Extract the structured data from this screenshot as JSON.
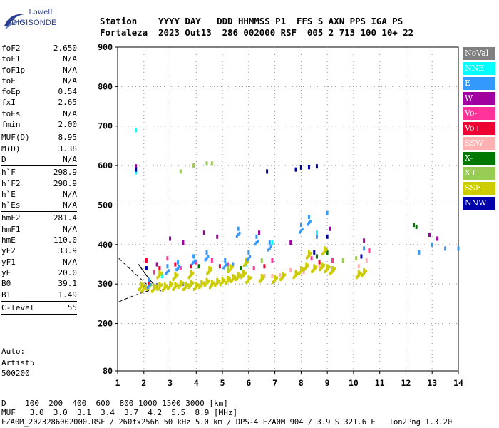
{
  "logo": {
    "line1": "Lowell",
    "line2": "DIGISONDE"
  },
  "header": {
    "row1": "Station    YYYY DAY   DDD HHMMSS P1  FFS S AXN PPS IGA PS",
    "row2": "Fortaleza  2023 Out13  286 002000 RSF  005 2 713 100 10+ 22"
  },
  "params": [
    {
      "name": "foF2",
      "value": "2.650"
    },
    {
      "name": "foF1",
      "value": "N/A"
    },
    {
      "name": "foF1p",
      "value": "N/A"
    },
    {
      "name": "foE",
      "value": "N/A"
    },
    {
      "name": "foEp",
      "value": "0.54"
    },
    {
      "name": "fxI",
      "value": "2.65"
    },
    {
      "name": "foEs",
      "value": "N/A"
    },
    {
      "name": "fmin",
      "value": "2.00"
    },
    {
      "name": "MUF(D)",
      "value": "8.95"
    },
    {
      "name": "M(D)",
      "value": "3.38"
    },
    {
      "name": "D",
      "value": "N/A"
    },
    {
      "name": "h`F",
      "value": "298.9"
    },
    {
      "name": "h`F2",
      "value": "298.9"
    },
    {
      "name": "h`E",
      "value": "N/A"
    },
    {
      "name": "h`Es",
      "value": "N/A"
    },
    {
      "name": "hmF2",
      "value": "281.4"
    },
    {
      "name": "hmF1",
      "value": "N/A"
    },
    {
      "name": "hmE",
      "value": "110.0"
    },
    {
      "name": "yF2",
      "value": "33.9"
    },
    {
      "name": "yF1",
      "value": "N/A"
    },
    {
      "name": "yE",
      "value": "20.0"
    },
    {
      "name": "B0",
      "value": "39.1"
    },
    {
      "name": "B1",
      "value": "1.49"
    },
    {
      "name": "C-level",
      "value": "55"
    }
  ],
  "auto": [
    "Auto:",
    "Artist5",
    "500200"
  ],
  "bottom": {
    "row1": "D    100  200  400  600  800 1000 1500 3000 [km]",
    "row2": "MUF   3.0  3.0  3.1  3.4  3.7  4.2  5.5  8.9 [MHz]",
    "row3": "FZA0M_2023286002000.RSF / 260fx256h 50 kHz 5.0 km / DPS-4 FZA0M 904 / 3.9 S 321.6 E   Ion2Png 1.3.20"
  },
  "legend": [
    {
      "label": "NoVal",
      "color": "#808080"
    },
    {
      "label": "NNE",
      "color": "#00ffff"
    },
    {
      "label": "E",
      "color": "#3399ff"
    },
    {
      "label": "W",
      "color": "#a000a0"
    },
    {
      "label": "Vo-",
      "color": "#ff3399"
    },
    {
      "label": "Vo+",
      "color": "#ee0033"
    },
    {
      "label": "SSW",
      "color": "#ffb0b0"
    },
    {
      "label": "X-",
      "color": "#007700"
    },
    {
      "label": "X+",
      "color": "#99cc55"
    },
    {
      "label": "SSE",
      "color": "#cccc00"
    },
    {
      "label": "NNW",
      "color": "#0000aa"
    }
  ],
  "chart_data": {
    "type": "scatter",
    "title": "",
    "xlabel": "",
    "ylabel": "",
    "xlim": [
      1,
      14
    ],
    "ylim": [
      80,
      900
    ],
    "xticks": [
      1,
      2,
      3,
      4,
      5,
      6,
      7,
      8,
      9,
      10,
      11,
      12,
      13,
      14
    ],
    "yticks": [
      80,
      200,
      300,
      400,
      500,
      600,
      700,
      800,
      900
    ],
    "grid": true,
    "legend_position": "right",
    "series": [
      {
        "name": "SSE",
        "color": "#cccc00",
        "points": [
          [
            1.9,
            300
          ],
          [
            2.0,
            295
          ],
          [
            2.2,
            300
          ],
          [
            2.4,
            295
          ],
          [
            2.6,
            300
          ],
          [
            2.8,
            298
          ],
          [
            3.0,
            302
          ],
          [
            3.2,
            300
          ],
          [
            3.4,
            305
          ],
          [
            3.6,
            300
          ],
          [
            3.8,
            305
          ],
          [
            4.0,
            300
          ],
          [
            4.2,
            305
          ],
          [
            4.4,
            310
          ],
          [
            4.6,
            305
          ],
          [
            4.8,
            310
          ],
          [
            5.0,
            312
          ],
          [
            5.2,
            315
          ],
          [
            5.4,
            320
          ],
          [
            5.6,
            325
          ],
          [
            5.8,
            330
          ],
          [
            6.0,
            318
          ],
          [
            6.5,
            320
          ],
          [
            7.0,
            318
          ],
          [
            7.3,
            325
          ],
          [
            7.8,
            330
          ],
          [
            8.0,
            340
          ],
          [
            8.2,
            350
          ],
          [
            8.5,
            345
          ],
          [
            8.8,
            350
          ],
          [
            9.0,
            345
          ],
          [
            9.2,
            340
          ],
          [
            10.2,
            330
          ],
          [
            10.4,
            335
          ],
          [
            2.6,
            330
          ],
          [
            3.2,
            325
          ],
          [
            3.8,
            330
          ],
          [
            4.5,
            340
          ],
          [
            5.3,
            345
          ],
          [
            5.9,
            360
          ],
          [
            8.3,
            380
          ],
          [
            8.9,
            390
          ]
        ]
      },
      {
        "name": "E",
        "color": "#3399ff",
        "points": [
          [
            2.2,
            310
          ],
          [
            2.9,
            345
          ],
          [
            3.3,
            355
          ],
          [
            3.9,
            370
          ],
          [
            4.4,
            380
          ],
          [
            5.1,
            360
          ],
          [
            5.6,
            440
          ],
          [
            6.0,
            380
          ],
          [
            6.3,
            420
          ],
          [
            6.8,
            405
          ],
          [
            8.0,
            450
          ],
          [
            8.3,
            470
          ],
          [
            9.0,
            480
          ],
          [
            10.4,
            390
          ],
          [
            12.5,
            380
          ],
          [
            13.0,
            400
          ],
          [
            13.5,
            390
          ],
          [
            14.0,
            390
          ],
          [
            5.4,
            350
          ],
          [
            8.6,
            420
          ]
        ]
      },
      {
        "name": "NNE",
        "color": "#00ffff",
        "points": [
          [
            1.7,
            690
          ],
          [
            1.7,
            583
          ],
          [
            6.9,
            405
          ],
          [
            8.6,
            430
          ],
          [
            9.1,
            440
          ],
          [
            5.9,
            350
          ],
          [
            2.7,
            320
          ]
        ]
      },
      {
        "name": "W",
        "color": "#a000a0",
        "points": [
          [
            1.7,
            598
          ],
          [
            3.0,
            415
          ],
          [
            3.5,
            405
          ],
          [
            4.3,
            430
          ],
          [
            4.8,
            420
          ],
          [
            6.4,
            430
          ],
          [
            7.6,
            405
          ],
          [
            9.1,
            440
          ],
          [
            10.4,
            410
          ],
          [
            12.9,
            425
          ],
          [
            13.2,
            415
          ],
          [
            2.5,
            350
          ]
        ]
      },
      {
        "name": "NNW",
        "color": "#0000aa",
        "points": [
          [
            1.7,
            590
          ],
          [
            6.7,
            585
          ],
          [
            7.8,
            590
          ],
          [
            8.0,
            595
          ],
          [
            8.3,
            596
          ],
          [
            8.6,
            598
          ],
          [
            9.0,
            420
          ],
          [
            8.5,
            380
          ],
          [
            10.3,
            370
          ],
          [
            2.1,
            340
          ]
        ]
      },
      {
        "name": "Vo-",
        "color": "#ff3399",
        "points": [
          [
            2.4,
            330
          ],
          [
            2.9,
            365
          ],
          [
            3.4,
            340
          ],
          [
            4.0,
            355
          ],
          [
            4.6,
            360
          ],
          [
            5.2,
            350
          ],
          [
            6.2,
            340
          ],
          [
            6.9,
            360
          ],
          [
            8.4,
            365
          ],
          [
            9.2,
            360
          ],
          [
            10.6,
            385
          ]
        ]
      },
      {
        "name": "Vo+",
        "color": "#ee0033",
        "points": [
          [
            2.1,
            360
          ],
          [
            2.6,
            340
          ],
          [
            3.2,
            350
          ],
          [
            3.8,
            345
          ],
          [
            4.9,
            345
          ],
          [
            6.6,
            345
          ],
          [
            8.7,
            355
          ],
          [
            2.2,
            300
          ]
        ]
      },
      {
        "name": "SSW",
        "color": "#ffb0b0",
        "points": [
          [
            6.6,
            320
          ],
          [
            6.9,
            320
          ],
          [
            7.2,
            322
          ],
          [
            7.6,
            335
          ],
          [
            8.1,
            330
          ],
          [
            8.7,
            345
          ],
          [
            10.5,
            360
          ],
          [
            10.2,
            345
          ]
        ]
      },
      {
        "name": "X-",
        "color": "#007700",
        "points": [
          [
            12.3,
            450
          ],
          [
            12.4,
            445
          ],
          [
            9.0,
            380
          ],
          [
            8.6,
            370
          ],
          [
            4.1,
            345
          ],
          [
            5.7,
            340
          ]
        ]
      },
      {
        "name": "X+",
        "color": "#99cc55",
        "points": [
          [
            3.4,
            585
          ],
          [
            4.4,
            605
          ],
          [
            4.6,
            605
          ],
          [
            3.9,
            600
          ],
          [
            5.2,
            340
          ],
          [
            6.5,
            360
          ],
          [
            9.6,
            360
          ],
          [
            10.1,
            365
          ]
        ]
      },
      {
        "name": "NoVal",
        "color": "#808080",
        "points": [
          [
            2.0,
            295
          ],
          [
            2.5,
            297
          ],
          [
            3.5,
            300
          ]
        ]
      }
    ]
  }
}
